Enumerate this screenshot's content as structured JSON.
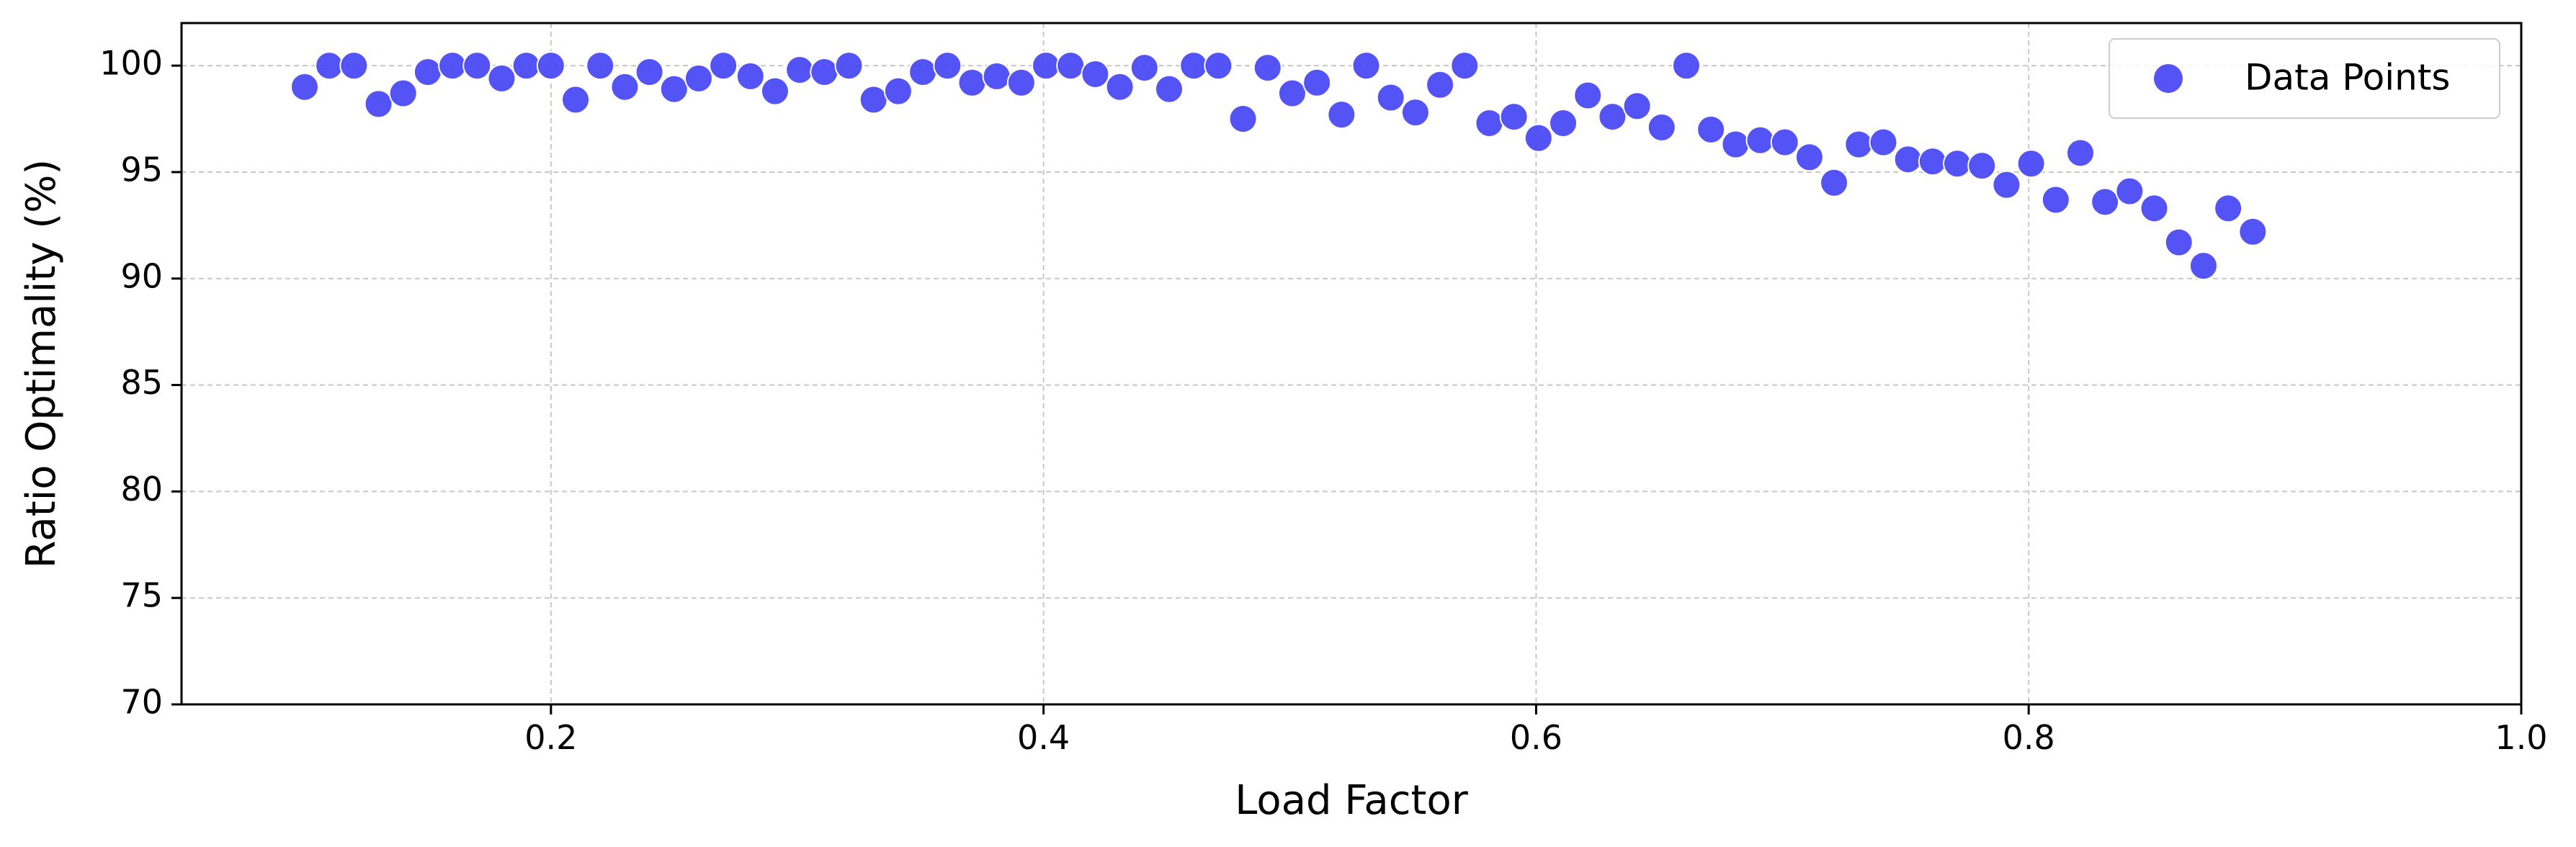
{
  "chart_data": {
    "type": "scatter",
    "title": "",
    "xlabel": "Load Factor",
    "ylabel": "Ratio Optimality (%)",
    "xlim": [
      0.05,
      1.0
    ],
    "ylim": [
      70,
      102
    ],
    "xticks": [
      0.2,
      0.4,
      0.6,
      0.8,
      1.0
    ],
    "xtick_labels": [
      "0.2",
      "0.4",
      "0.6",
      "0.8",
      "1.0"
    ],
    "yticks": [
      70,
      75,
      80,
      85,
      90,
      95,
      100
    ],
    "ytick_labels": [
      "70",
      "75",
      "80",
      "85",
      "90",
      "95",
      "100"
    ],
    "grid": true,
    "legend": {
      "placement": "top-right",
      "entries": [
        "Data Points"
      ]
    },
    "colors": {
      "points": "#4545f5",
      "grid": "#c8c8c8",
      "axis": "#000000"
    },
    "series": [
      {
        "name": "Data Points",
        "points": [
          [
            0.1,
            99.0
          ],
          [
            0.11,
            100.0
          ],
          [
            0.12,
            100.0
          ],
          [
            0.13,
            98.2
          ],
          [
            0.14,
            98.7
          ],
          [
            0.15,
            99.7
          ],
          [
            0.16,
            100.0
          ],
          [
            0.17,
            100.0
          ],
          [
            0.18,
            99.4
          ],
          [
            0.19,
            100.0
          ],
          [
            0.2,
            100.0
          ],
          [
            0.21,
            98.4
          ],
          [
            0.22,
            100.0
          ],
          [
            0.23,
            99.0
          ],
          [
            0.24,
            99.7
          ],
          [
            0.25,
            98.9
          ],
          [
            0.26,
            99.4
          ],
          [
            0.27,
            100.0
          ],
          [
            0.281,
            99.5
          ],
          [
            0.291,
            98.8
          ],
          [
            0.301,
            99.8
          ],
          [
            0.311,
            99.7
          ],
          [
            0.321,
            100.0
          ],
          [
            0.331,
            98.4
          ],
          [
            0.341,
            98.8
          ],
          [
            0.351,
            99.7
          ],
          [
            0.361,
            100.0
          ],
          [
            0.371,
            99.2
          ],
          [
            0.381,
            99.5
          ],
          [
            0.391,
            99.2
          ],
          [
            0.401,
            100.0
          ],
          [
            0.411,
            100.0
          ],
          [
            0.421,
            99.6
          ],
          [
            0.431,
            99.0
          ],
          [
            0.441,
            99.9
          ],
          [
            0.451,
            98.9
          ],
          [
            0.461,
            100.0
          ],
          [
            0.471,
            100.0
          ],
          [
            0.481,
            97.5
          ],
          [
            0.491,
            99.9
          ],
          [
            0.501,
            98.7
          ],
          [
            0.511,
            99.2
          ],
          [
            0.521,
            97.7
          ],
          [
            0.531,
            100.0
          ],
          [
            0.541,
            98.5
          ],
          [
            0.551,
            97.8
          ],
          [
            0.561,
            99.1
          ],
          [
            0.571,
            100.0
          ],
          [
            0.581,
            97.3
          ],
          [
            0.591,
            97.6
          ],
          [
            0.601,
            96.6
          ],
          [
            0.611,
            97.3
          ],
          [
            0.621,
            98.6
          ],
          [
            0.631,
            97.6
          ],
          [
            0.641,
            98.1
          ],
          [
            0.651,
            97.1
          ],
          [
            0.661,
            100.0
          ],
          [
            0.671,
            97.0
          ],
          [
            0.681,
            96.3
          ],
          [
            0.691,
            96.5
          ],
          [
            0.701,
            96.4
          ],
          [
            0.711,
            95.7
          ],
          [
            0.721,
            94.5
          ],
          [
            0.731,
            96.3
          ],
          [
            0.741,
            96.4
          ],
          [
            0.751,
            95.6
          ],
          [
            0.761,
            95.5
          ],
          [
            0.771,
            95.4
          ],
          [
            0.781,
            95.3
          ],
          [
            0.791,
            94.4
          ],
          [
            0.801,
            95.4
          ],
          [
            0.811,
            93.7
          ],
          [
            0.821,
            95.9
          ],
          [
            0.831,
            93.6
          ],
          [
            0.841,
            94.1
          ],
          [
            0.851,
            93.3
          ],
          [
            0.861,
            91.7
          ],
          [
            0.871,
            90.6
          ],
          [
            0.881,
            93.3
          ],
          [
            0.891,
            92.2
          ]
        ]
      }
    ]
  }
}
